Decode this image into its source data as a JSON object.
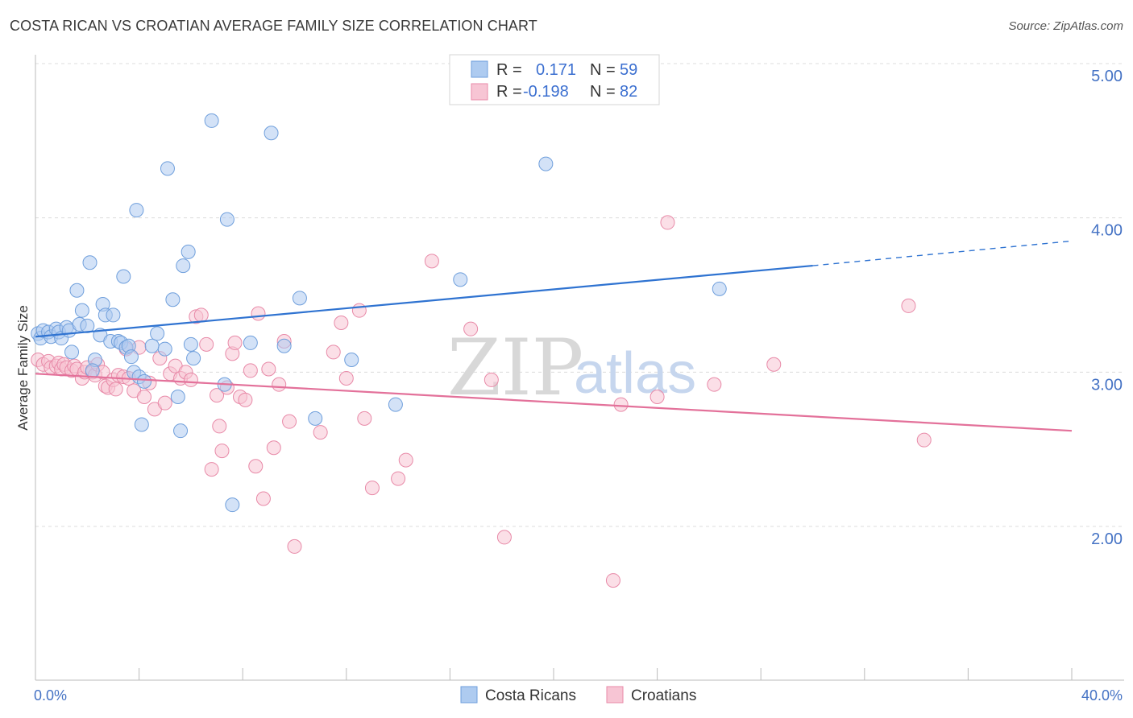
{
  "title": "COSTA RICAN VS CROATIAN AVERAGE FAMILY SIZE CORRELATION CHART",
  "source": "Source: ZipAtlas.com",
  "watermark": {
    "zip": "ZIP",
    "atlas": "atlas"
  },
  "colors": {
    "blue_fill": "#aecbf0",
    "blue_stroke": "#6f9fdc",
    "blue_line": "#2f73d1",
    "pink_fill": "#f7c5d4",
    "pink_stroke": "#e88aa8",
    "pink_line": "#e3719a",
    "tick_text": "#4472c4",
    "grid": "#dcdcdc"
  },
  "legend": {
    "rows": [
      {
        "r_label": "R =",
        "r_value": "0.171",
        "n_label": "N =",
        "n_value": "59",
        "color": "blue"
      },
      {
        "r_label": "R =",
        "r_value": "-0.198",
        "n_label": "N =",
        "n_value": "82",
        "color": "pink"
      }
    ]
  },
  "bottom_legend": [
    {
      "label": "Costa Ricans",
      "color": "blue"
    },
    {
      "label": "Croatians",
      "color": "pink"
    }
  ],
  "chart_data": {
    "type": "scatter",
    "title": "COSTA RICAN VS CROATIAN AVERAGE FAMILY SIZE CORRELATION CHART",
    "xlabel": "",
    "ylabel": "Average Family Size",
    "xlim": [
      0,
      40
    ],
    "ylim": [
      1.2,
      5.1
    ],
    "x_tick_labels": [
      "0.0%",
      "40.0%"
    ],
    "y_ticks": [
      2.0,
      3.0,
      4.0,
      5.0
    ],
    "y_tick_labels": [
      "2.00",
      "3.00",
      "4.00",
      "5.00"
    ],
    "grid": "horizontal dashed",
    "legend_position": "top-center",
    "series": [
      {
        "name": "Costa Ricans",
        "color": "blue",
        "r": 0.171,
        "n": 59,
        "trend": {
          "x": [
            0,
            30,
            40
          ],
          "y": [
            3.23,
            3.69,
            3.85
          ],
          "dashed_from_x": 30
        },
        "points": [
          [
            0.1,
            3.25
          ],
          [
            0.2,
            3.22
          ],
          [
            0.3,
            3.27
          ],
          [
            0.5,
            3.26
          ],
          [
            0.6,
            3.23
          ],
          [
            0.8,
            3.28
          ],
          [
            0.9,
            3.26
          ],
          [
            1.0,
            3.22
          ],
          [
            1.2,
            3.29
          ],
          [
            1.3,
            3.27
          ],
          [
            1.4,
            3.13
          ],
          [
            1.6,
            3.53
          ],
          [
            1.7,
            3.31
          ],
          [
            1.8,
            3.4
          ],
          [
            2.0,
            3.3
          ],
          [
            2.1,
            3.71
          ],
          [
            2.3,
            3.08
          ],
          [
            2.2,
            3.01
          ],
          [
            2.5,
            3.24
          ],
          [
            2.6,
            3.44
          ],
          [
            2.7,
            3.37
          ],
          [
            2.9,
            3.2
          ],
          [
            3.0,
            3.37
          ],
          [
            3.2,
            3.2
          ],
          [
            3.3,
            3.19
          ],
          [
            3.4,
            3.62
          ],
          [
            3.5,
            3.16
          ],
          [
            3.6,
            3.17
          ],
          [
            3.7,
            3.1
          ],
          [
            3.8,
            3.0
          ],
          [
            3.9,
            4.05
          ],
          [
            4.0,
            2.97
          ],
          [
            4.1,
            2.66
          ],
          [
            4.2,
            2.94
          ],
          [
            4.5,
            3.17
          ],
          [
            4.7,
            3.25
          ],
          [
            5.0,
            3.15
          ],
          [
            5.1,
            4.32
          ],
          [
            5.3,
            3.47
          ],
          [
            5.5,
            2.84
          ],
          [
            5.6,
            2.62
          ],
          [
            5.7,
            3.69
          ],
          [
            5.9,
            3.78
          ],
          [
            6.1,
            3.09
          ],
          [
            6.8,
            4.63
          ],
          [
            7.3,
            2.92
          ],
          [
            7.4,
            3.99
          ],
          [
            7.6,
            2.14
          ],
          [
            8.3,
            3.19
          ],
          [
            9.1,
            4.55
          ],
          [
            9.6,
            3.17
          ],
          [
            10.2,
            3.48
          ],
          [
            10.8,
            2.7
          ],
          [
            12.2,
            3.08
          ],
          [
            13.9,
            2.79
          ],
          [
            16.4,
            3.6
          ],
          [
            19.7,
            4.35
          ],
          [
            26.4,
            3.54
          ],
          [
            6.0,
            3.18
          ]
        ]
      },
      {
        "name": "Croatians",
        "color": "pink",
        "r": -0.198,
        "n": 82,
        "trend": {
          "x": [
            0,
            40
          ],
          "y": [
            2.99,
            2.62
          ]
        },
        "points": [
          [
            0.1,
            3.08
          ],
          [
            0.3,
            3.05
          ],
          [
            0.5,
            3.07
          ],
          [
            0.6,
            3.03
          ],
          [
            0.8,
            3.04
          ],
          [
            0.9,
            3.06
          ],
          [
            1.0,
            3.02
          ],
          [
            1.1,
            3.05
          ],
          [
            1.2,
            3.03
          ],
          [
            1.4,
            3.01
          ],
          [
            1.5,
            3.04
          ],
          [
            1.6,
            3.02
          ],
          [
            1.8,
            2.96
          ],
          [
            1.9,
            3.0
          ],
          [
            2.0,
            3.03
          ],
          [
            2.2,
            3.0
          ],
          [
            2.3,
            2.98
          ],
          [
            2.4,
            3.05
          ],
          [
            2.6,
            3.0
          ],
          [
            2.7,
            2.91
          ],
          [
            2.8,
            2.9
          ],
          [
            3.0,
            2.95
          ],
          [
            3.1,
            2.89
          ],
          [
            3.2,
            2.98
          ],
          [
            3.4,
            2.97
          ],
          [
            3.5,
            3.15
          ],
          [
            3.6,
            2.96
          ],
          [
            3.8,
            2.88
          ],
          [
            4.0,
            3.16
          ],
          [
            4.2,
            2.84
          ],
          [
            4.4,
            2.93
          ],
          [
            4.6,
            2.76
          ],
          [
            4.8,
            3.09
          ],
          [
            5.0,
            2.8
          ],
          [
            5.2,
            2.99
          ],
          [
            5.4,
            3.04
          ],
          [
            5.6,
            2.96
          ],
          [
            5.8,
            3.0
          ],
          [
            6.0,
            2.95
          ],
          [
            6.2,
            3.36
          ],
          [
            6.4,
            3.37
          ],
          [
            6.6,
            3.18
          ],
          [
            6.8,
            2.37
          ],
          [
            7.0,
            2.85
          ],
          [
            7.1,
            2.65
          ],
          [
            7.2,
            2.49
          ],
          [
            7.4,
            2.9
          ],
          [
            7.6,
            3.12
          ],
          [
            7.7,
            3.19
          ],
          [
            7.9,
            2.84
          ],
          [
            8.1,
            2.82
          ],
          [
            8.3,
            3.01
          ],
          [
            8.5,
            2.39
          ],
          [
            8.6,
            3.38
          ],
          [
            8.8,
            2.18
          ],
          [
            9.0,
            3.02
          ],
          [
            9.2,
            2.51
          ],
          [
            9.4,
            2.92
          ],
          [
            9.6,
            3.2
          ],
          [
            9.8,
            2.68
          ],
          [
            10.0,
            1.87
          ],
          [
            11.0,
            2.61
          ],
          [
            11.5,
            3.13
          ],
          [
            11.8,
            3.32
          ],
          [
            12.0,
            2.96
          ],
          [
            12.5,
            3.4
          ],
          [
            12.7,
            2.7
          ],
          [
            13.0,
            2.25
          ],
          [
            14.0,
            2.31
          ],
          [
            14.3,
            2.43
          ],
          [
            15.3,
            3.72
          ],
          [
            16.8,
            3.28
          ],
          [
            17.6,
            2.95
          ],
          [
            18.1,
            1.93
          ],
          [
            22.3,
            1.65
          ],
          [
            22.6,
            2.79
          ],
          [
            24.0,
            2.84
          ],
          [
            24.4,
            3.97
          ],
          [
            26.2,
            2.92
          ],
          [
            28.5,
            3.05
          ],
          [
            33.7,
            3.43
          ],
          [
            34.3,
            2.56
          ]
        ],
        "extra_points_note": ""
      }
    ]
  }
}
